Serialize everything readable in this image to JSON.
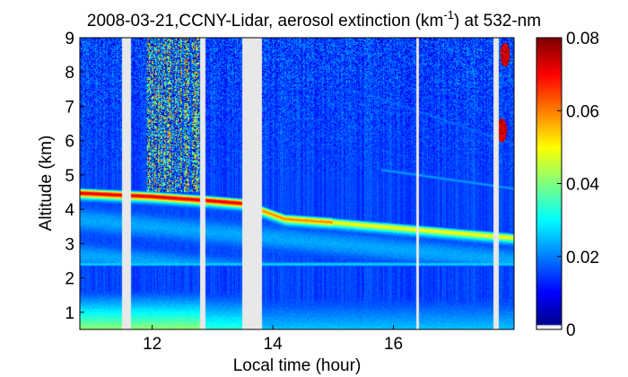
{
  "chart_data": {
    "type": "heatmap",
    "title": {
      "prefix": "2008-03-21,CCNY-Lidar, aerosol extinction (km",
      "superscript": "-1",
      "suffix": ") at 532-nm"
    },
    "xlabel": "Local time (hour)",
    "ylabel": "Altitude (km)",
    "xlim": [
      10.8,
      18.0
    ],
    "ylim": [
      0.5,
      9
    ],
    "x_ticks": [
      12,
      14,
      16
    ],
    "y_ticks": [
      1,
      2,
      3,
      4,
      5,
      6,
      7,
      8,
      9
    ],
    "colorbar": {
      "colormap": "jet",
      "range": [
        0,
        0.08
      ],
      "ticks": [
        0,
        0.02,
        0.04,
        0.06,
        0.08
      ],
      "tick_labels": [
        "0",
        "0.02",
        "0.04",
        "0.06",
        "0.08"
      ]
    },
    "data_gaps_hours": [
      [
        11.5,
        11.65
      ],
      [
        12.8,
        12.88
      ],
      [
        13.5,
        13.82
      ],
      [
        16.38,
        16.42
      ],
      [
        17.66,
        17.74
      ]
    ],
    "features": {
      "aerosol_layer_top_km": [
        {
          "t": 10.8,
          "z": 4.6
        },
        {
          "t": 12.0,
          "z": 4.5
        },
        {
          "t": 12.8,
          "z": 4.4
        },
        {
          "t": 13.5,
          "z": 4.3
        },
        {
          "t": 14.2,
          "z": 3.85
        },
        {
          "t": 15.0,
          "z": 3.75
        },
        {
          "t": 16.0,
          "z": 3.6
        },
        {
          "t": 17.0,
          "z": 3.45
        },
        {
          "t": 18.0,
          "z": 3.3
        }
      ],
      "lower_layer_km": 2.4,
      "cloud_patches": [
        {
          "t": 17.85,
          "z": 8.5
        },
        {
          "t": 17.8,
          "z": 6.3
        }
      ]
    }
  }
}
